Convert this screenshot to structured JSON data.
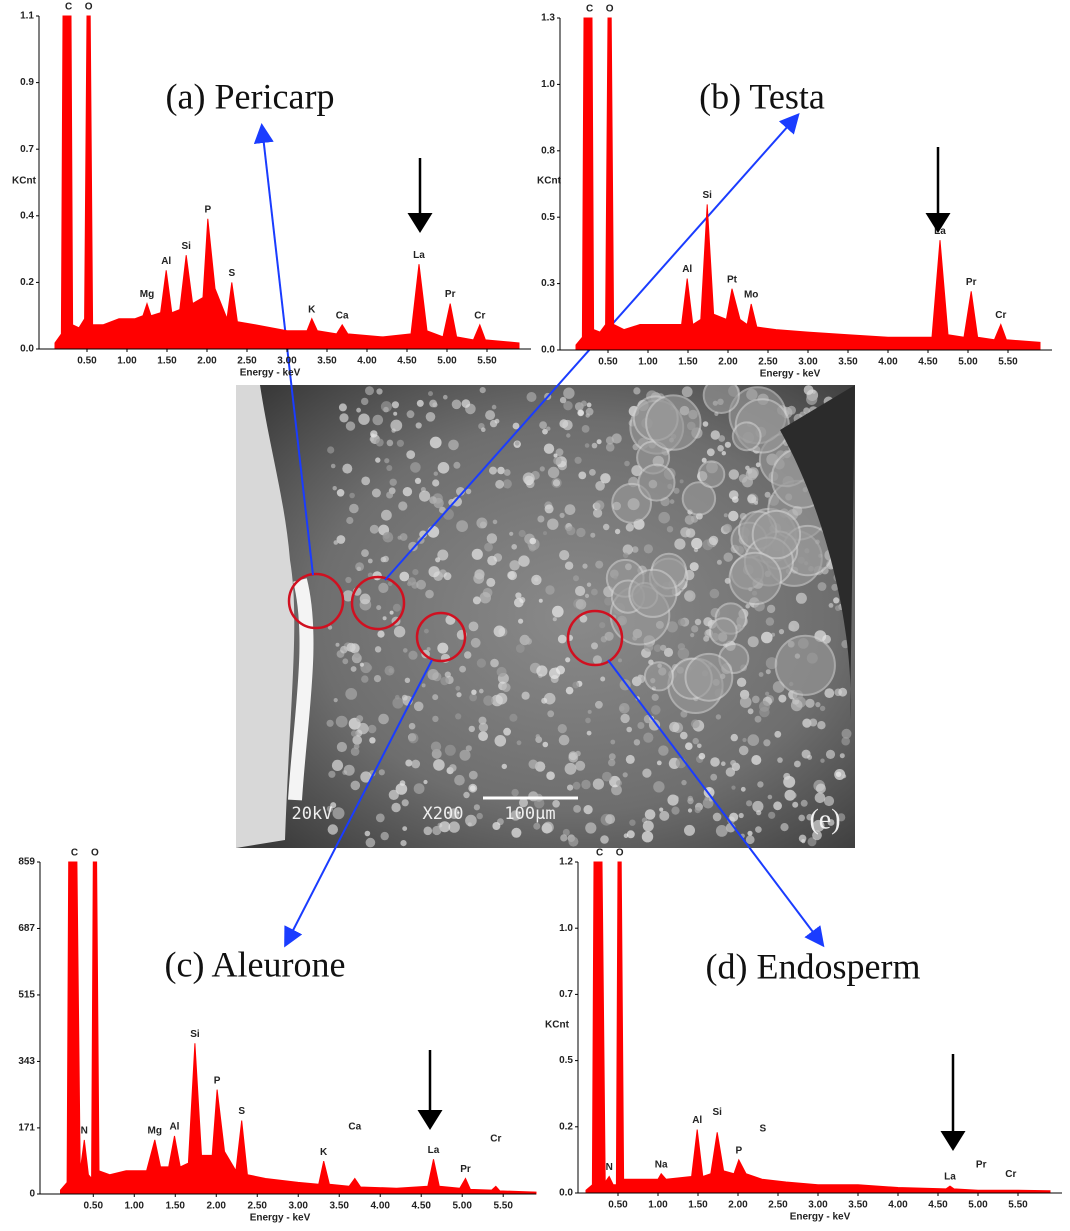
{
  "chart_data": [
    {
      "type": "area",
      "title": "(a) Pericarp",
      "xlabel": "Energy - keV",
      "ylabel": "KCnt",
      "color": "#ff0000",
      "xlim": [
        -0.1,
        6.05
      ],
      "ylim": [
        0,
        1.1
      ],
      "xticks": [
        {
          "value": 0.5,
          "label": "0.50"
        },
        {
          "value": 1,
          "label": "1.00"
        },
        {
          "value": 1.5,
          "label": "1.50"
        },
        {
          "value": 2,
          "label": "2.00"
        },
        {
          "value": 2.5,
          "label": "2.50"
        },
        {
          "value": 3,
          "label": "3.00"
        },
        {
          "value": 3.5,
          "label": "3.50"
        },
        {
          "value": 4,
          "label": "4.00"
        },
        {
          "value": 4.5,
          "label": "4.50"
        },
        {
          "value": 5,
          "label": "5.00"
        },
        {
          "value": 5.5,
          "label": "5.50"
        }
      ],
      "yticks": [
        {
          "value": 0,
          "label": "0.0"
        },
        {
          "value": 0.22,
          "label": "0.2"
        },
        {
          "value": 0.44,
          "label": "0.4"
        },
        {
          "value": 0.66,
          "label": "0.7"
        },
        {
          "value": 0.88,
          "label": "0.9"
        },
        1.1
      ],
      "x": [
        0.1,
        0.18,
        0.2,
        0.3,
        0.32,
        0.4,
        0.47,
        0.5,
        0.54,
        0.57,
        0.7,
        0.9,
        1.1,
        1.2,
        1.25,
        1.3,
        1.42,
        1.49,
        1.56,
        1.66,
        1.74,
        1.82,
        1.95,
        2.01,
        2.1,
        2.25,
        2.31,
        2.38,
        2.6,
        3.0,
        3.25,
        3.31,
        3.38,
        3.62,
        3.69,
        3.76,
        4.2,
        4.55,
        4.65,
        4.75,
        4.95,
        5.04,
        5.12,
        5.33,
        5.41,
        5.48,
        5.9
      ],
      "values": [
        0.02,
        0.05,
        1.1,
        1.1,
        0.08,
        0.07,
        0.1,
        1.1,
        1.1,
        0.08,
        0.08,
        0.1,
        0.1,
        0.11,
        0.15,
        0.11,
        0.12,
        0.26,
        0.12,
        0.13,
        0.31,
        0.15,
        0.17,
        0.43,
        0.2,
        0.1,
        0.22,
        0.09,
        0.08,
        0.06,
        0.06,
        0.1,
        0.06,
        0.05,
        0.08,
        0.05,
        0.04,
        0.05,
        0.28,
        0.06,
        0.04,
        0.15,
        0.04,
        0.03,
        0.08,
        0.03,
        0.02
      ],
      "annotations": [
        {
          "text": "C",
          "x": 0.27,
          "y": 1.1
        },
        {
          "text": "O",
          "x": 0.52,
          "y": 1.1
        },
        {
          "text": "Mg",
          "x": 1.25,
          "y": 0.15
        },
        {
          "text": "Al",
          "x": 1.49,
          "y": 0.26
        },
        {
          "text": "Si",
          "x": 1.74,
          "y": 0.31
        },
        {
          "text": "P",
          "x": 2.01,
          "y": 0.43
        },
        {
          "text": "S",
          "x": 2.31,
          "y": 0.22
        },
        {
          "text": "K",
          "x": 3.31,
          "y": 0.1
        },
        {
          "text": "Ca",
          "x": 3.69,
          "y": 0.08
        },
        {
          "text": "La",
          "x": 4.65,
          "y": 0.28
        },
        {
          "text": "Pr",
          "x": 5.04,
          "y": 0.15
        },
        {
          "text": "Cr",
          "x": 5.41,
          "y": 0.08
        }
      ]
    },
    {
      "type": "area",
      "title": "(b) Testa",
      "xlabel": "Energy - keV",
      "ylabel": "KCnt",
      "color": "#ff0000",
      "xlim": [
        -0.1,
        6.05
      ],
      "ylim": [
        0,
        1.3
      ],
      "xticks": [
        {
          "value": 0.5,
          "label": "0.50"
        },
        {
          "value": 1,
          "label": "1.00"
        },
        {
          "value": 1.5,
          "label": "1.50"
        },
        {
          "value": 2,
          "label": "2.00"
        },
        {
          "value": 2.5,
          "label": "2.50"
        },
        {
          "value": 3,
          "label": "3.00"
        },
        {
          "value": 3.5,
          "label": "3.50"
        },
        {
          "value": 4,
          "label": "4.00"
        },
        {
          "value": 4.5,
          "label": "4.50"
        },
        {
          "value": 5,
          "label": "5.00"
        },
        {
          "value": 5.5,
          "label": "5.50"
        }
      ],
      "yticks": [
        {
          "value": 0,
          "label": "0.0"
        },
        {
          "value": 0.26,
          "label": "0.3"
        },
        {
          "value": 0.52,
          "label": "0.5"
        },
        {
          "value": 0.78,
          "label": "0.8"
        },
        {
          "value": 1.04,
          "label": "1.0"
        },
        1.3
      ],
      "x": [
        0.1,
        0.18,
        0.2,
        0.3,
        0.32,
        0.4,
        0.47,
        0.5,
        0.54,
        0.57,
        0.7,
        0.9,
        1.2,
        1.42,
        1.49,
        1.56,
        1.66,
        1.74,
        1.82,
        1.98,
        2.05,
        2.15,
        2.24,
        2.29,
        2.36,
        2.6,
        3.0,
        3.5,
        4.0,
        4.5,
        4.55,
        4.65,
        4.75,
        4.95,
        5.04,
        5.12,
        5.33,
        5.41,
        5.48,
        5.9
      ],
      "values": [
        0.02,
        0.05,
        1.3,
        1.3,
        0.08,
        0.07,
        0.1,
        1.3,
        1.3,
        0.1,
        0.08,
        0.1,
        0.1,
        0.1,
        0.28,
        0.1,
        0.12,
        0.57,
        0.14,
        0.12,
        0.24,
        0.12,
        0.1,
        0.18,
        0.09,
        0.08,
        0.07,
        0.06,
        0.05,
        0.05,
        0.05,
        0.43,
        0.06,
        0.05,
        0.23,
        0.05,
        0.04,
        0.1,
        0.04,
        0.03
      ],
      "annotations": [
        {
          "text": "C",
          "x": 0.27,
          "y": 1.3
        },
        {
          "text": "O",
          "x": 0.52,
          "y": 1.3
        },
        {
          "text": "Al",
          "x": 1.49,
          "y": 0.28
        },
        {
          "text": "Si",
          "x": 1.74,
          "y": 0.57
        },
        {
          "text": "Pt",
          "x": 2.05,
          "y": 0.24
        },
        {
          "text": "Mo",
          "x": 2.29,
          "y": 0.18
        },
        {
          "text": "La",
          "x": 4.65,
          "y": 0.43
        },
        {
          "text": "Pr",
          "x": 5.04,
          "y": 0.23
        },
        {
          "text": "Cr",
          "x": 5.41,
          "y": 0.1
        }
      ]
    },
    {
      "type": "area",
      "title": "(c) Aleurone",
      "xlabel": "Energy - keV",
      "color": "#ff0000",
      "xlim": [
        -0.15,
        5.9
      ],
      "ylim": [
        0,
        859
      ],
      "xticks": [
        {
          "value": 0.5,
          "label": "0.50"
        },
        {
          "value": 1,
          "label": "1.00"
        },
        {
          "value": 1.5,
          "label": "1.50"
        },
        {
          "value": 2,
          "label": "2.00"
        },
        {
          "value": 2.5,
          "label": "2.50"
        },
        {
          "value": 3,
          "label": "3.00"
        },
        {
          "value": 3.5,
          "label": "3.50"
        },
        {
          "value": 4,
          "label": "4.00"
        },
        {
          "value": 4.5,
          "label": "4.50"
        },
        {
          "value": 5,
          "label": "5.00"
        },
        {
          "value": 5.5,
          "label": "5.50"
        }
      ],
      "yticks": [
        0,
        171,
        343,
        515,
        687,
        859
      ],
      "x": [
        0.1,
        0.18,
        0.2,
        0.3,
        0.34,
        0.39,
        0.44,
        0.48,
        0.5,
        0.54,
        0.57,
        0.7,
        0.9,
        1.15,
        1.25,
        1.32,
        1.42,
        1.49,
        1.56,
        1.66,
        1.74,
        1.82,
        1.95,
        2.01,
        2.1,
        2.24,
        2.31,
        2.38,
        2.6,
        3.0,
        3.25,
        3.31,
        3.38,
        3.62,
        3.69,
        3.76,
        4.2,
        4.58,
        4.65,
        4.72,
        4.97,
        5.04,
        5.1,
        5.36,
        5.41,
        5.46,
        5.9
      ],
      "values": [
        10,
        30,
        859,
        859,
        60,
        140,
        50,
        40,
        859,
        859,
        60,
        50,
        60,
        60,
        140,
        70,
        70,
        150,
        70,
        80,
        390,
        100,
        100,
        270,
        110,
        60,
        190,
        50,
        40,
        30,
        25,
        85,
        25,
        20,
        40,
        18,
        15,
        20,
        90,
        20,
        15,
        40,
        12,
        10,
        20,
        8,
        5
      ],
      "annotations": [
        {
          "text": "C",
          "x": 0.27,
          "y": 859
        },
        {
          "text": "O",
          "x": 0.52,
          "y": 859
        },
        {
          "text": "N",
          "x": 0.39,
          "y": 140
        },
        {
          "text": "Mg",
          "x": 1.25,
          "y": 140
        },
        {
          "text": "Al",
          "x": 1.49,
          "y": 150
        },
        {
          "text": "Si",
          "x": 1.74,
          "y": 390
        },
        {
          "text": "P",
          "x": 2.01,
          "y": 270
        },
        {
          "text": "S",
          "x": 2.31,
          "y": 190
        },
        {
          "text": "K",
          "x": 3.31,
          "y": 85
        },
        {
          "text": "Ca",
          "x": 3.69,
          "y": 150
        },
        {
          "text": "La",
          "x": 4.65,
          "y": 90
        },
        {
          "text": "Pr",
          "x": 5.04,
          "y": 40
        },
        {
          "text": "Cr",
          "x": 5.41,
          "y": 120
        }
      ]
    },
    {
      "type": "area",
      "title": "(d) Endosperm",
      "xlabel": "Energy - keV",
      "ylabel": "KCnt",
      "color": "#ff0000",
      "xlim": [
        0,
        6.05
      ],
      "ylim": [
        0,
        1.2
      ],
      "xticks": [
        {
          "value": 0.5,
          "label": "0.50"
        },
        {
          "value": 1,
          "label": "1.00"
        },
        {
          "value": 1.5,
          "label": "1.50"
        },
        {
          "value": 2,
          "label": "2.00"
        },
        {
          "value": 2.5,
          "label": "2.50"
        },
        {
          "value": 3,
          "label": "3.00"
        },
        {
          "value": 3.5,
          "label": "3.50"
        },
        {
          "value": 4,
          "label": "4.00"
        },
        {
          "value": 4.5,
          "label": "4.50"
        },
        {
          "value": 5,
          "label": "5.00"
        },
        {
          "value": 5.5,
          "label": "5.50"
        }
      ],
      "yticks": [
        {
          "value": 0,
          "label": "0.0"
        },
        {
          "value": 0.24,
          "label": "0.2"
        },
        {
          "value": 0.48,
          "label": "0.5"
        },
        {
          "value": 0.72,
          "label": "0.7"
        },
        {
          "value": 0.96,
          "label": "1.0"
        },
        1.2
      ],
      "x": [
        0.1,
        0.18,
        0.2,
        0.3,
        0.34,
        0.39,
        0.44,
        0.48,
        0.5,
        0.54,
        0.57,
        0.7,
        1.0,
        1.04,
        1.1,
        1.42,
        1.49,
        1.56,
        1.66,
        1.74,
        1.82,
        1.95,
        2.01,
        2.1,
        2.3,
        2.6,
        3.0,
        3.5,
        4.0,
        4.6,
        4.65,
        4.7,
        5.0,
        5.5,
        5.9
      ],
      "values": [
        0.01,
        0.03,
        1.2,
        1.2,
        0.04,
        0.06,
        0.03,
        0.03,
        1.2,
        1.2,
        0.05,
        0.05,
        0.05,
        0.07,
        0.05,
        0.06,
        0.23,
        0.06,
        0.07,
        0.22,
        0.08,
        0.07,
        0.12,
        0.07,
        0.05,
        0.04,
        0.03,
        0.03,
        0.02,
        0.015,
        0.025,
        0.015,
        0.01,
        0.01,
        0.008
      ],
      "annotations": [
        {
          "text": "C",
          "x": 0.27,
          "y": 1.2
        },
        {
          "text": "O",
          "x": 0.52,
          "y": 1.2
        },
        {
          "text": "N",
          "x": 0.39,
          "y": 0.06
        },
        {
          "text": "Na",
          "x": 1.04,
          "y": 0.07
        },
        {
          "text": "Al",
          "x": 1.49,
          "y": 0.23
        },
        {
          "text": "Si",
          "x": 1.74,
          "y": 0.26
        },
        {
          "text": "P",
          "x": 2.01,
          "y": 0.12
        },
        {
          "text": "S",
          "x": 2.31,
          "y": 0.2
        },
        {
          "text": "La",
          "x": 4.65,
          "y": 0.025
        },
        {
          "text": "Pr",
          "x": 5.04,
          "y": 0.07
        },
        {
          "text": "Cr",
          "x": 5.41,
          "y": 0.035
        }
      ]
    }
  ],
  "image": {
    "voltage": "20kV",
    "magnification": "X200",
    "scale": "100µm",
    "caption": "(e)"
  }
}
